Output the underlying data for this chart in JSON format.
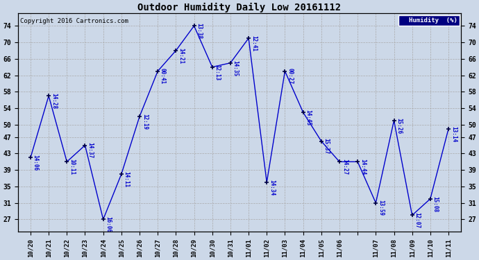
{
  "title": "Outdoor Humidity Daily Low 20161112",
  "copyright": "Copyright 2016 Cartronics.com",
  "legend_label": "Humidity  (%)",
  "line_color": "#0000cc",
  "marker_color": "#000044",
  "label_color": "#0000cc",
  "bg_color": "#ccd8e8",
  "ylim": [
    24,
    77
  ],
  "yticks": [
    27,
    31,
    35,
    39,
    43,
    47,
    50,
    54,
    58,
    62,
    66,
    70,
    74
  ],
  "x_indices": [
    0,
    1,
    2,
    3,
    4,
    5,
    6,
    7,
    8,
    9,
    10,
    11,
    12,
    13,
    14,
    15,
    16,
    17,
    18,
    19,
    20,
    21,
    22,
    23
  ],
  "values": [
    42,
    57,
    41,
    45,
    27,
    38,
    52,
    63,
    68,
    74,
    64,
    65,
    71,
    36,
    63,
    53,
    46,
    41,
    41,
    31,
    51,
    28,
    32,
    49
  ],
  "time_labels": [
    "14:06",
    "14:28",
    "10:11",
    "14:37",
    "16:06",
    "14:11",
    "12:19",
    "00:41",
    "14:21",
    "13:38",
    "12:13",
    "14:35",
    "12:41",
    "14:34",
    "00:27",
    "14:45",
    "15:37",
    "14:27",
    "14:44",
    "13:59",
    "15:26",
    "12:07",
    "15:08",
    "13:14"
  ],
  "x_ticklabels": [
    "10/20",
    "10/21",
    "10/22",
    "10/23",
    "10/24",
    "10/25",
    "10/26",
    "10/27",
    "10/28",
    "10/29",
    "10/30",
    "10/31",
    "11/01",
    "11/02",
    "11/03",
    "11/04",
    "11/05",
    "11/06",
    "",
    "11/07",
    "11/08",
    "11/09",
    "11/10",
    "11/11"
  ]
}
